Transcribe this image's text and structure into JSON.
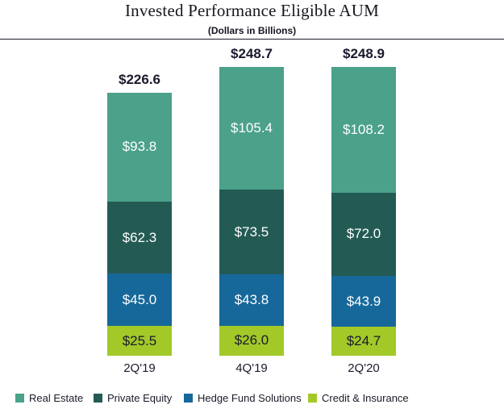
{
  "header": {
    "title": "Invested Performance Eligible AUM",
    "subtitle": "(Dollars in Billions)"
  },
  "chart_data": {
    "type": "bar",
    "stacked": true,
    "title": "Invested Performance Eligible AUM",
    "subtitle": "(Dollars in Billions)",
    "units": "Dollars in Billions",
    "categories": [
      "2Q'19",
      "4Q'19",
      "2Q'20"
    ],
    "totals": [
      226.6,
      248.7,
      248.9
    ],
    "total_labels": [
      "$226.6",
      "$248.7",
      "$248.9"
    ],
    "value_prefix": "$",
    "series": [
      {
        "name": "Real Estate",
        "color": "#4BA18A",
        "label_color": "#FFFFFF",
        "values": [
          93.8,
          105.4,
          108.2
        ]
      },
      {
        "name": "Private Equity",
        "color": "#235B54",
        "label_color": "#FFFFFF",
        "values": [
          62.3,
          73.5,
          72.0
        ]
      },
      {
        "name": "Hedge Fund Solutions",
        "color": "#16689B",
        "label_color": "#FFFFFF",
        "values": [
          45.0,
          43.8,
          43.9
        ]
      },
      {
        "name": "Credit & Insurance",
        "color": "#A2C928",
        "label_color": "#1A1A2E",
        "values": [
          25.5,
          26.0,
          24.7
        ]
      }
    ],
    "series_order": "top-to-bottom",
    "axis": {
      "y_visible": false,
      "gridlines": false
    },
    "legend_position": "bottom"
  },
  "colors": {
    "background": "#FFFFFF",
    "rule": "#1A1A28",
    "text_dark": "#1A1A2E"
  }
}
